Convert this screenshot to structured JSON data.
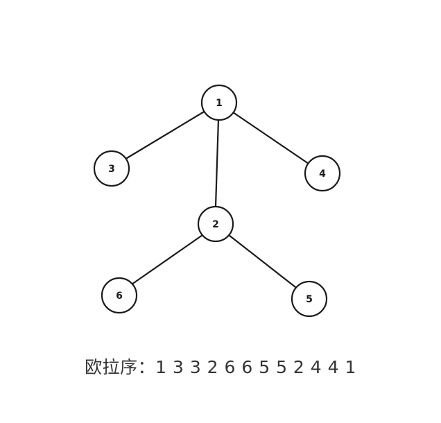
{
  "tree": {
    "root": "1",
    "nodes": [
      {
        "id": "n1",
        "label": "1"
      },
      {
        "id": "n3",
        "label": "3"
      },
      {
        "id": "n4",
        "label": "4"
      },
      {
        "id": "n2",
        "label": "2"
      },
      {
        "id": "n6",
        "label": "6"
      },
      {
        "id": "n5",
        "label": "5"
      }
    ],
    "edges": [
      {
        "from": "n1",
        "to": "n3"
      },
      {
        "from": "n1",
        "to": "n2"
      },
      {
        "from": "n1",
        "to": "n4"
      },
      {
        "from": "n2",
        "to": "n6"
      },
      {
        "from": "n2",
        "to": "n5"
      }
    ]
  },
  "caption": {
    "label": "欧拉序",
    "separator": "：",
    "sequence": "1 3 3 2 6 6 5 5 2 4 4 1"
  }
}
